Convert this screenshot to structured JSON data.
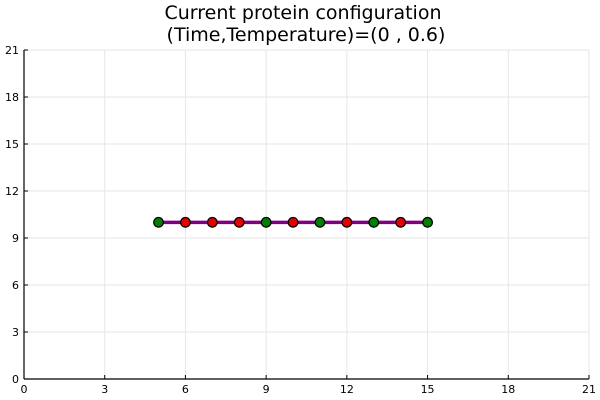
{
  "chart_data": {
    "type": "scatter",
    "title": "Current protein configuration",
    "subtitle": "(Time,Temperature)=(0 , 0.6)",
    "xlabel": "",
    "ylabel": "",
    "xlim": [
      0,
      21
    ],
    "ylim": [
      0,
      21
    ],
    "x_ticks": [
      0,
      3,
      6,
      9,
      12,
      15,
      18,
      21
    ],
    "y_ticks": [
      0,
      3,
      6,
      9,
      12,
      15,
      18,
      21
    ],
    "grid": true,
    "legend": "none",
    "chain_color": "#800080",
    "points": [
      {
        "x": 5,
        "y": 10,
        "color": "#008000"
      },
      {
        "x": 6,
        "y": 10,
        "color": "#e60000"
      },
      {
        "x": 7,
        "y": 10,
        "color": "#e60000"
      },
      {
        "x": 8,
        "y": 10,
        "color": "#e60000"
      },
      {
        "x": 9,
        "y": 10,
        "color": "#008000"
      },
      {
        "x": 10,
        "y": 10,
        "color": "#e60000"
      },
      {
        "x": 11,
        "y": 10,
        "color": "#008000"
      },
      {
        "x": 12,
        "y": 10,
        "color": "#e60000"
      },
      {
        "x": 13,
        "y": 10,
        "color": "#008000"
      },
      {
        "x": 14,
        "y": 10,
        "color": "#e60000"
      },
      {
        "x": 15,
        "y": 10,
        "color": "#008000"
      }
    ]
  }
}
